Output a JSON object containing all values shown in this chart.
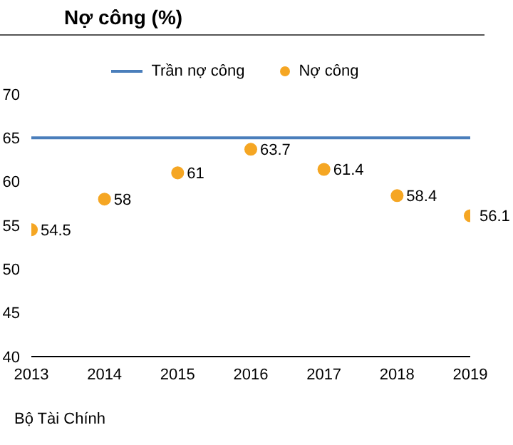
{
  "chart_data": {
    "type": "scatter",
    "title": "Nợ công (%)",
    "x": [
      2013,
      2014,
      2015,
      2016,
      2017,
      2018,
      2019
    ],
    "series": [
      {
        "name": "Trần nợ công",
        "type": "line",
        "color": "#4a7ebb",
        "values": [
          65,
          65,
          65,
          65,
          65,
          65,
          65
        ]
      },
      {
        "name": "Nợ công",
        "marker": "circle",
        "color": "#f5a623",
        "values": [
          54.5,
          58,
          61,
          63.7,
          61.4,
          58.4,
          56.1
        ],
        "value_labels": [
          "54.5",
          "58",
          "61",
          "63.7",
          "61.4",
          "58.4",
          "56.1"
        ]
      }
    ],
    "xlim": [
      2013,
      2019
    ],
    "xticks": [
      2013,
      2014,
      2015,
      2016,
      2017,
      2018,
      2019
    ],
    "ylim": [
      40,
      70
    ],
    "yticks": [
      40,
      45,
      50,
      55,
      60,
      65,
      70
    ],
    "grid": false,
    "legend": "top",
    "line_style": "solid",
    "annotations": [
      "Bộ Tài Chính"
    ]
  }
}
